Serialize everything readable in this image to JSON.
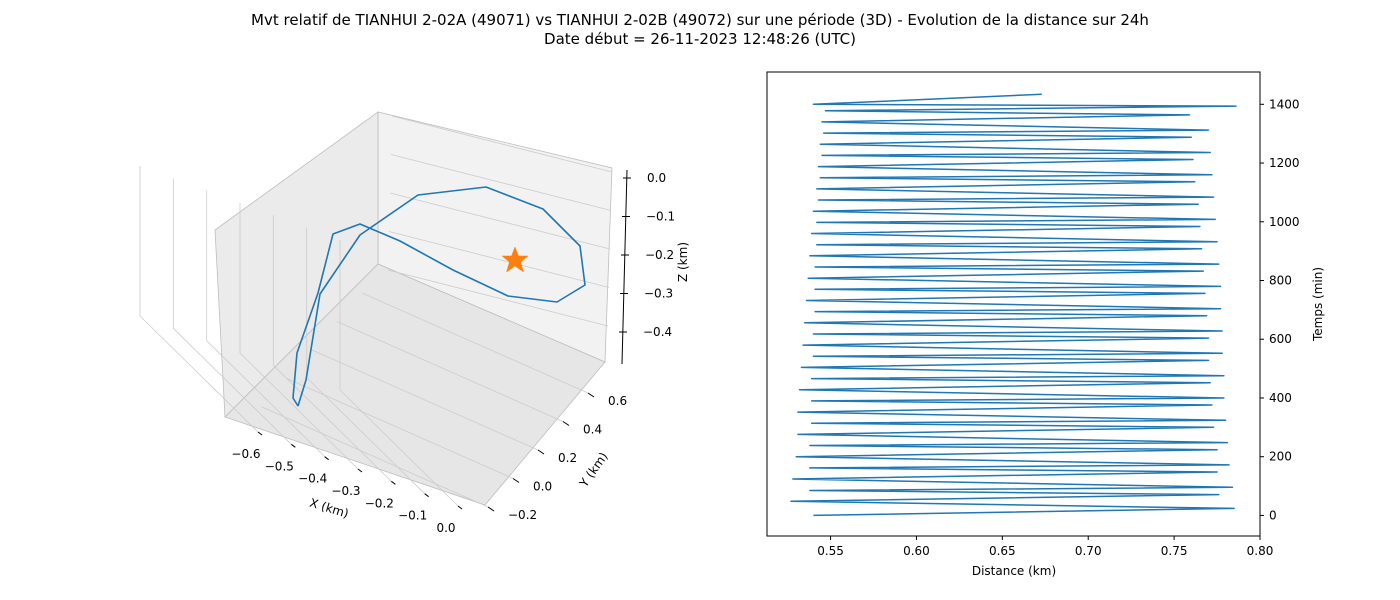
{
  "figure": {
    "title_line1": "Mvt relatif de TIANHUI 2-02A (49071) vs TIANHUI 2-02B (49072) sur une période (3D) - Evolution de la distance sur 24h",
    "title_line2": "Date début = 26-11-2023 12:48:26 (UTC)"
  },
  "colors": {
    "line": "#1f77b4",
    "marker": "#ff7f0e",
    "pane": "#f2f2f2",
    "grid": "#cccccc"
  },
  "chart_data": [
    {
      "type": "line",
      "projection": "3d",
      "xlabel": "X (km)",
      "ylabel": "Y (km)",
      "zlabel": "Z (km)",
      "x_ticks": [
        "−0.6",
        "−0.5",
        "−0.4",
        "−0.3",
        "−0.2",
        "−0.1",
        "0.0"
      ],
      "y_ticks": [
        "−0.2",
        "0.0",
        "0.2",
        "0.4",
        "0.6"
      ],
      "z_ticks": [
        "0.0",
        "−0.1",
        "−0.2",
        "−0.3",
        "−0.4"
      ],
      "grid": true,
      "marker": {
        "shape": "star",
        "note": "relative reference point"
      }
    },
    {
      "type": "line",
      "xlabel": "Distance (km)",
      "ylabel": "Temps (min)",
      "xlim": [
        0.513,
        0.8
      ],
      "ylim": [
        -70,
        1510
      ],
      "x_ticks": [
        0.55,
        0.6,
        0.65,
        0.7,
        0.75,
        0.8
      ],
      "y_ticks": [
        0,
        200,
        400,
        600,
        800,
        1000,
        1200,
        1400
      ],
      "x_tick_labels": [
        "0.55",
        "0.60",
        "0.65",
        "0.70",
        "0.75",
        "0.80"
      ],
      "y_tick_labels": [
        "0",
        "200",
        "400",
        "600",
        "800",
        "1000",
        "1200",
        "1400"
      ],
      "points": [
        [
          0.54,
          0
        ],
        [
          0.785,
          24
        ],
        [
          0.527,
          48
        ],
        [
          0.776,
          71
        ],
        [
          0.538,
          85
        ],
        [
          0.784,
          96
        ],
        [
          0.528,
          124
        ],
        [
          0.775,
          148
        ],
        [
          0.538,
          162
        ],
        [
          0.782,
          172
        ],
        [
          0.53,
          200
        ],
        [
          0.775,
          224
        ],
        [
          0.538,
          238
        ],
        [
          0.781,
          248
        ],
        [
          0.531,
          276
        ],
        [
          0.773,
          300
        ],
        [
          0.539,
          314
        ],
        [
          0.78,
          324
        ],
        [
          0.531,
          352
        ],
        [
          0.772,
          376
        ],
        [
          0.539,
          390
        ],
        [
          0.779,
          400
        ],
        [
          0.532,
          428
        ],
        [
          0.771,
          452
        ],
        [
          0.539,
          466
        ],
        [
          0.779,
          476
        ],
        [
          0.533,
          504
        ],
        [
          0.77,
          528
        ],
        [
          0.54,
          542
        ],
        [
          0.778,
          552
        ],
        [
          0.534,
          580
        ],
        [
          0.77,
          604
        ],
        [
          0.54,
          618
        ],
        [
          0.778,
          628
        ],
        [
          0.535,
          656
        ],
        [
          0.769,
          680
        ],
        [
          0.541,
          694
        ],
        [
          0.777,
          704
        ],
        [
          0.536,
          732
        ],
        [
          0.768,
          756
        ],
        [
          0.541,
          770
        ],
        [
          0.777,
          780
        ],
        [
          0.537,
          808
        ],
        [
          0.767,
          832
        ],
        [
          0.541,
          846
        ],
        [
          0.776,
          856
        ],
        [
          0.538,
          884
        ],
        [
          0.766,
          908
        ],
        [
          0.542,
          922
        ],
        [
          0.775,
          932
        ],
        [
          0.539,
          960
        ],
        [
          0.765,
          984
        ],
        [
          0.542,
          998
        ],
        [
          0.774,
          1008
        ],
        [
          0.54,
          1036
        ],
        [
          0.764,
          1060
        ],
        [
          0.543,
          1074
        ],
        [
          0.773,
          1084
        ],
        [
          0.542,
          1112
        ],
        [
          0.762,
          1136
        ],
        [
          0.544,
          1150
        ],
        [
          0.772,
          1160
        ],
        [
          0.543,
          1188
        ],
        [
          0.761,
          1212
        ],
        [
          0.545,
          1226
        ],
        [
          0.771,
          1236
        ],
        [
          0.544,
          1264
        ],
        [
          0.76,
          1288
        ],
        [
          0.546,
          1302
        ],
        [
          0.77,
          1312
        ],
        [
          0.545,
          1340
        ],
        [
          0.759,
          1364
        ],
        [
          0.547,
          1378
        ],
        [
          0.786,
          1394
        ],
        [
          0.54,
          1400
        ],
        [
          0.673,
          1434
        ]
      ]
    }
  ]
}
